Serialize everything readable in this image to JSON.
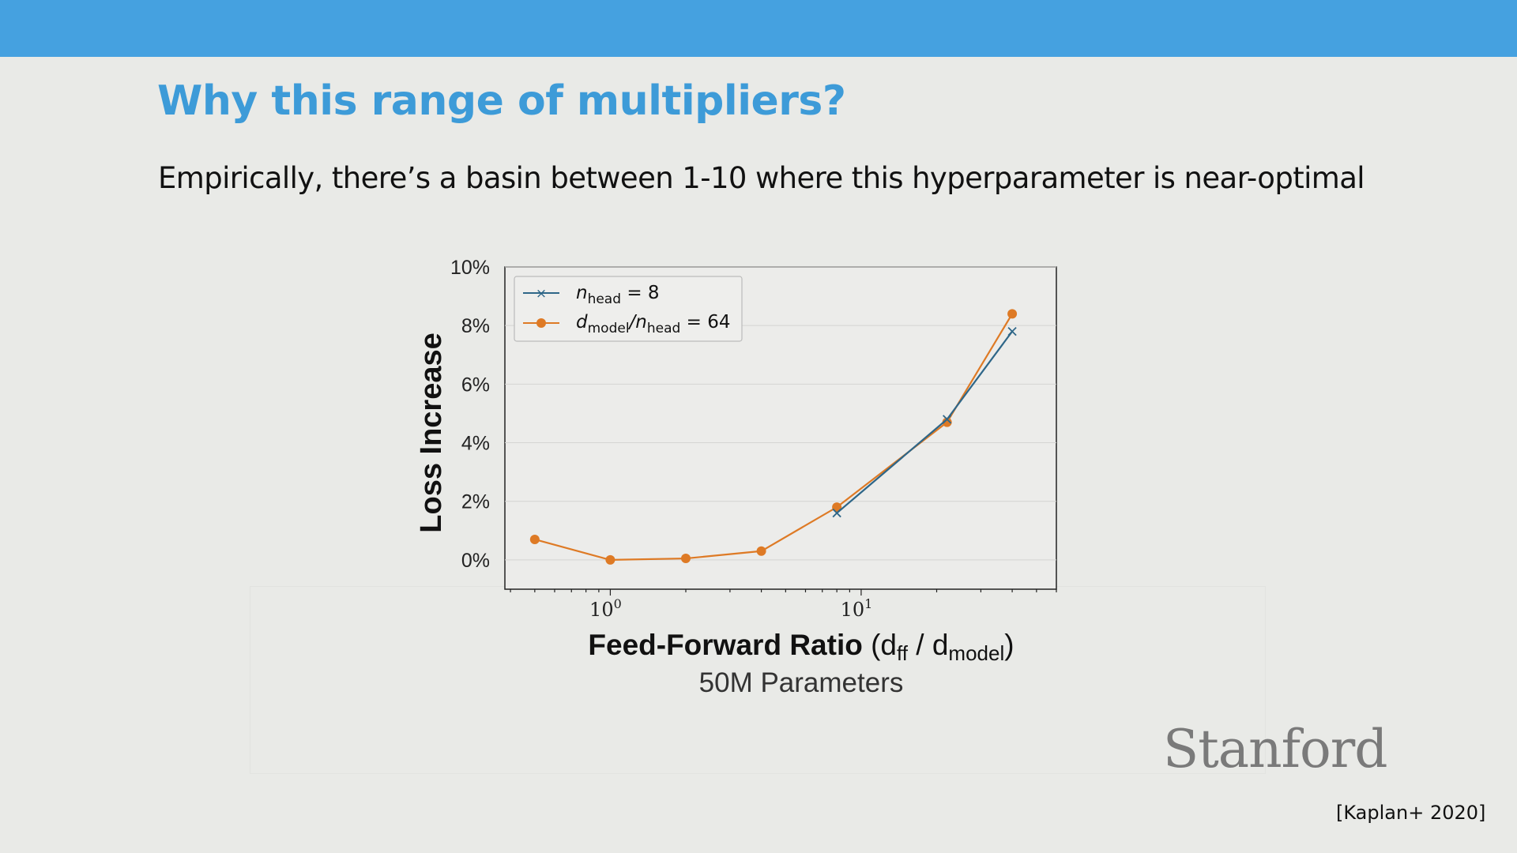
{
  "slide": {
    "title": "Why this range of multipliers?",
    "subtitle": "Empirically, there’s a  basin between 1-10 where this hyperparameter is near-optimal",
    "logo": "Stanford",
    "citation": "[Kaplan+ 2020]",
    "accent_color": "#45a1e0",
    "title_color": "#3d9bd8"
  },
  "chart_data": {
    "type": "line",
    "xlabel_bold": "Feed-Forward Ratio",
    "xlabel_rest": "(d",
    "xlabel_sub1": "ff",
    "xlabel_mid": " / d",
    "xlabel_sub2": "model",
    "xlabel_end": ")",
    "ylabel": "Loss Increase",
    "caption": "50M Parameters",
    "x_scale": "log",
    "x_ticks": [
      {
        "value": 1,
        "base": "10",
        "exp": "0"
      },
      {
        "value": 10,
        "base": "10",
        "exp": "1"
      }
    ],
    "y_ticks": [
      "0%",
      "2%",
      "4%",
      "6%",
      "8%",
      "10%"
    ],
    "y_tick_values": [
      0,
      2,
      4,
      6,
      8,
      10
    ],
    "ylim": [
      -1,
      10
    ],
    "xlim": [
      0.38,
      60
    ],
    "grid": true,
    "legend_position": "top-left",
    "series": [
      {
        "legend_var": "n",
        "legend_sub": "head",
        "legend_tail": " = 8",
        "marker": "x",
        "color": "#2e6688",
        "x": [
          8,
          22,
          40
        ],
        "y": [
          1.6,
          4.8,
          7.8
        ]
      },
      {
        "legend_var": "d",
        "legend_sub": "model",
        "legend_mid": "/n",
        "legend_sub2": "head",
        "legend_tail": " = 64",
        "marker": "circle",
        "color": "#de7a25",
        "x": [
          0.5,
          1,
          2,
          4,
          8,
          22,
          40
        ],
        "y": [
          0.7,
          0.0,
          0.05,
          0.3,
          1.8,
          4.7,
          8.4
        ]
      }
    ]
  }
}
